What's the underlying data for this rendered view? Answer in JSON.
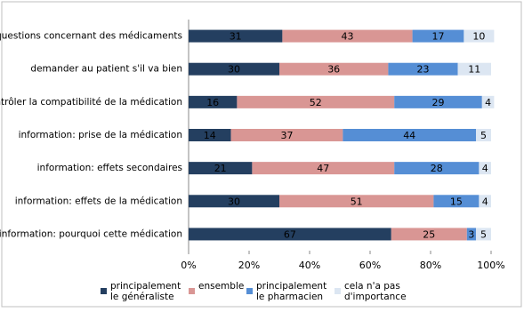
{
  "chart_data": {
    "type": "stacked_barh",
    "categories": [
      "questions concernant des médicaments",
      "demander au patient s'il va bien",
      "contrôler la compatibilité de la médication",
      "information: prise de la médication",
      "information: effets secondaires",
      "information: effets de la médication",
      "information: pourquoi cette médication"
    ],
    "series": [
      {
        "name": "principalement le généraliste",
        "color": "#243f60",
        "values": [
          31,
          30,
          16,
          14,
          21,
          30,
          67
        ]
      },
      {
        "name": "ensemble",
        "color": "#d99694",
        "values": [
          43,
          36,
          52,
          37,
          47,
          51,
          25
        ]
      },
      {
        "name": "principalement le pharmacien",
        "color": "#558ed5",
        "values": [
          17,
          23,
          29,
          44,
          28,
          15,
          3
        ]
      },
      {
        "name": "cela n'a pas d'importance",
        "color": "#dce6f2",
        "values": [
          10,
          11,
          4,
          5,
          4,
          4,
          5
        ]
      }
    ],
    "xlim": [
      0,
      100
    ],
    "xticks": [
      {
        "value": 0,
        "label": "0%"
      },
      {
        "value": 20,
        "label": "20%"
      },
      {
        "value": 40,
        "label": "40%"
      },
      {
        "value": 60,
        "label": "60%"
      },
      {
        "value": 80,
        "label": "80%"
      },
      {
        "value": 100,
        "label": "100%"
      }
    ],
    "legend": "bottom"
  }
}
